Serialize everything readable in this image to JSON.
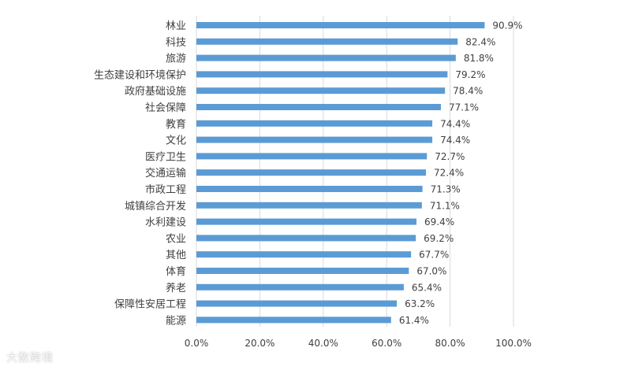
{
  "chart_data": {
    "type": "bar",
    "orientation": "horizontal",
    "title": "",
    "xlabel": "",
    "ylabel": "",
    "xlim": [
      0,
      100
    ],
    "x_ticks": [
      "0.0%",
      "20.0%",
      "40.0%",
      "60.0%",
      "80.0%",
      "100.0%"
    ],
    "x_tick_values": [
      0,
      20,
      40,
      60,
      80,
      100
    ],
    "grid": "vertical",
    "categories": [
      "林业",
      "科技",
      "旅游",
      "生态建设和环境保护",
      "政府基础设施",
      "社会保障",
      "教育",
      "文化",
      "医疗卫生",
      "交通运输",
      "市政工程",
      "城镇综合开发",
      "水利建设",
      "农业",
      "其他",
      "体育",
      "养老",
      "保障性安居工程",
      "能源"
    ],
    "values": [
      90.9,
      82.4,
      81.8,
      79.2,
      78.4,
      77.1,
      74.4,
      74.4,
      72.7,
      72.4,
      71.3,
      71.1,
      69.4,
      69.2,
      67.7,
      67.0,
      65.4,
      63.2,
      61.4
    ],
    "value_labels": [
      "90.9%",
      "82.4%",
      "81.8%",
      "79.2%",
      "78.4%",
      "77.1%",
      "74.4%",
      "74.4%",
      "72.7%",
      "72.4%",
      "71.3%",
      "71.1%",
      "69.4%",
      "69.2%",
      "67.7%",
      "67.0%",
      "65.4%",
      "63.2%",
      "61.4%"
    ],
    "bar_color": "#5b9bd5",
    "grid_color": "#d9d9d9"
  },
  "watermark": "大数跨境"
}
